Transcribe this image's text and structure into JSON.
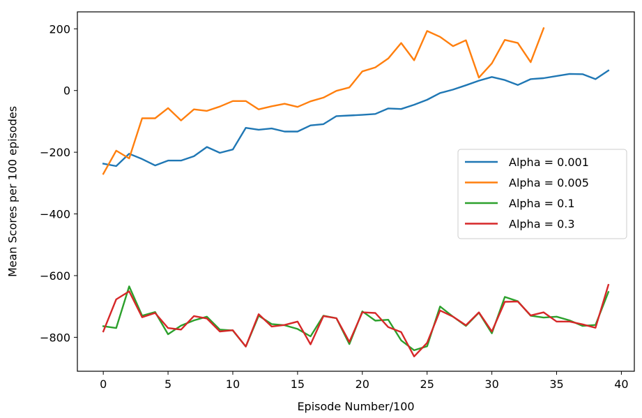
{
  "chart_data": {
    "type": "line",
    "xlabel": "Episode Number/100",
    "ylabel": "Mean Scores per 100 episodes",
    "xlim": [
      -2,
      41
    ],
    "ylim": [
      -910,
      255
    ],
    "xticks": [
      0,
      5,
      10,
      15,
      20,
      25,
      30,
      35,
      40
    ],
    "yticks": [
      -800,
      -600,
      -400,
      -200,
      0,
      200
    ],
    "xtick_labels": [
      "0",
      "5",
      "10",
      "15",
      "20",
      "25",
      "30",
      "35",
      "40"
    ],
    "ytick_labels": [
      "−800",
      "−600",
      "−400",
      "−200",
      "0",
      "200"
    ],
    "grid": false,
    "legend_position": "center-right",
    "series": [
      {
        "name": "Alpha = 0.001",
        "color": "#1f77b4",
        "x": [
          0,
          1,
          2,
          3,
          4,
          5,
          6,
          7,
          8,
          9,
          10,
          11,
          12,
          13,
          14,
          15,
          16,
          17,
          18,
          19,
          20,
          21,
          22,
          23,
          24,
          25,
          26,
          27,
          28,
          29,
          30,
          31,
          32,
          33,
          34,
          35,
          36,
          37,
          38,
          39
        ],
        "values": [
          -237,
          -245,
          -205,
          -222,
          -243,
          -227,
          -227,
          -213,
          -183,
          -202,
          -191,
          -121,
          -127,
          -123,
          -133,
          -133,
          -113,
          -109,
          -83,
          -81,
          -79,
          -76,
          -58,
          -60,
          -46,
          -30,
          -8,
          3,
          17,
          32,
          44,
          34,
          18,
          37,
          40,
          47,
          54,
          53,
          37,
          65
        ]
      },
      {
        "name": "Alpha = 0.005",
        "color": "#ff7f0e",
        "x": [
          0,
          1,
          2,
          3,
          4,
          5,
          6,
          7,
          8,
          9,
          10,
          11,
          12,
          13,
          14,
          15,
          16,
          17,
          18,
          19,
          20,
          21,
          22,
          23,
          24,
          25,
          26,
          27,
          28,
          29,
          30,
          31,
          32,
          33,
          34
        ],
        "values": [
          -270,
          -195,
          -220,
          -90,
          -90,
          -57,
          -97,
          -61,
          -66,
          -52,
          -34,
          -34,
          -61,
          -51,
          -43,
          -53,
          -35,
          -23,
          -1,
          10,
          62,
          75,
          104,
          154,
          98,
          193,
          174,
          144,
          163,
          42,
          88,
          164,
          154,
          92,
          202
        ]
      },
      {
        "name": "Alpha = 0.1",
        "color": "#2ca02c",
        "x": [
          0,
          1,
          2,
          3,
          4,
          5,
          6,
          7,
          8,
          9,
          10,
          11,
          12,
          13,
          14,
          15,
          16,
          17,
          18,
          19,
          20,
          21,
          22,
          23,
          24,
          25,
          26,
          27,
          28,
          29,
          30,
          31,
          32,
          33,
          34,
          35,
          36,
          37,
          38,
          39
        ],
        "values": [
          -764,
          -770,
          -635,
          -730,
          -718,
          -790,
          -762,
          -745,
          -733,
          -775,
          -778,
          -830,
          -730,
          -757,
          -761,
          -773,
          -797,
          -730,
          -738,
          -822,
          -716,
          -746,
          -743,
          -810,
          -842,
          -829,
          -700,
          -733,
          -763,
          -720,
          -787,
          -669,
          -683,
          -730,
          -736,
          -733,
          -745,
          -763,
          -760,
          -653
        ]
      },
      {
        "name": "Alpha = 0.3",
        "color": "#d62728",
        "x": [
          0,
          1,
          2,
          3,
          4,
          5,
          6,
          7,
          8,
          9,
          10,
          11,
          12,
          13,
          14,
          15,
          16,
          17,
          18,
          19,
          20,
          21,
          22,
          23,
          24,
          25,
          26,
          27,
          28,
          29,
          30,
          31,
          32,
          33,
          34,
          35,
          36,
          37,
          38,
          39
        ],
        "values": [
          -781,
          -677,
          -651,
          -735,
          -721,
          -770,
          -775,
          -731,
          -739,
          -781,
          -777,
          -830,
          -725,
          -765,
          -760,
          -749,
          -823,
          -731,
          -738,
          -815,
          -719,
          -721,
          -767,
          -783,
          -862,
          -818,
          -713,
          -733,
          -761,
          -719,
          -781,
          -685,
          -684,
          -729,
          -719,
          -749,
          -749,
          -758,
          -769,
          -630
        ]
      }
    ]
  }
}
